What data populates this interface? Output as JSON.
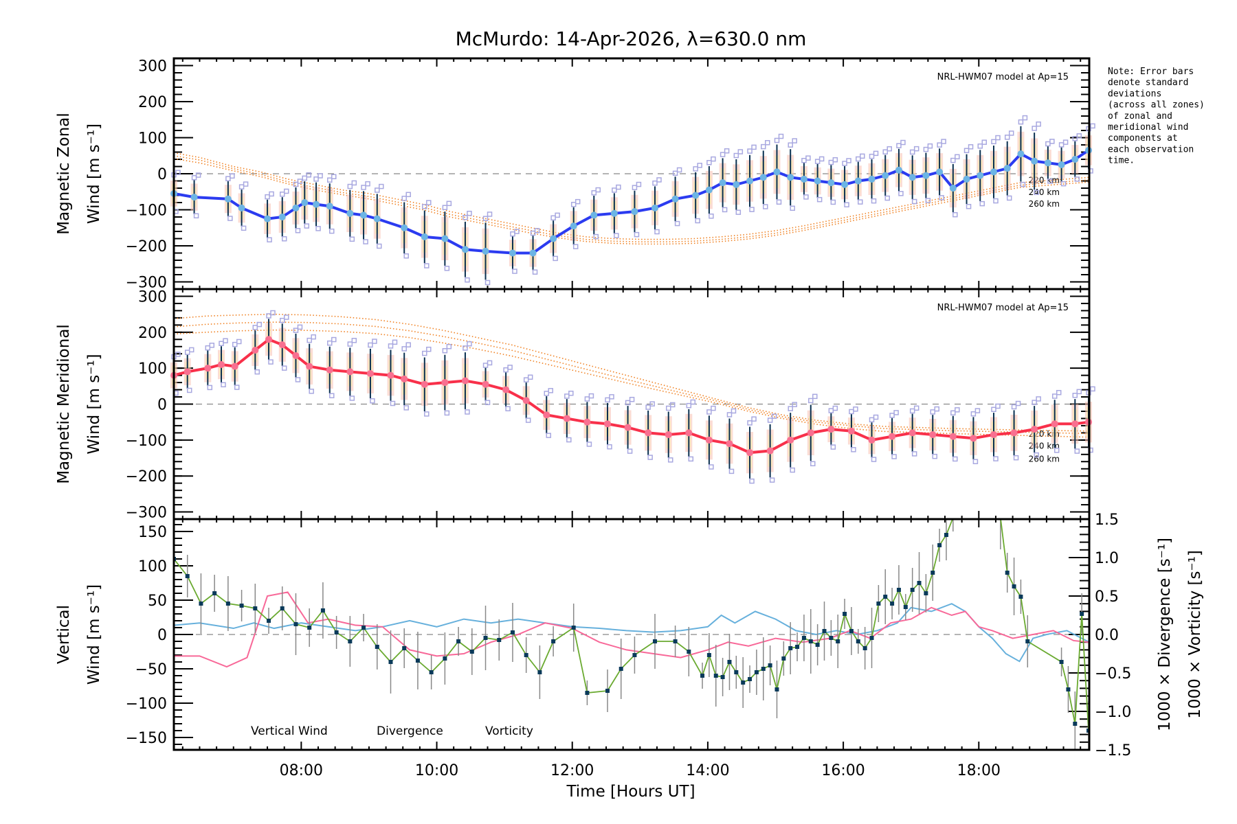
{
  "title": "McMurdo: 14-Apr-2026, λ=630.0 nm",
  "note_lines": [
    "Note: Error bars",
    "denote standard",
    "deviations",
    "(across all zones)",
    "of zonal and",
    "meridional wind",
    "components at",
    "each observation",
    "time."
  ],
  "colors": {
    "zonal": "#2b3bf0",
    "zonal_marker": "#6cb4e4",
    "meridional": "#f8304a",
    "meridional_marker": "#f87090",
    "model": "#f08020",
    "vertical": "#6aaa30",
    "vertical_marker": "#0a3a5a",
    "divergence": "#66b0dc",
    "vorticity": "#f86898",
    "errorbar": "#0a3050",
    "zone_scatter": "#a8a8e0",
    "zero_line": "#888888"
  },
  "chart_data": [
    {
      "type": "line",
      "panel": "zonal",
      "ylabel_lines": [
        "Magnetic Zonal",
        "Wind [m s⁻¹]"
      ],
      "ylim": [
        -320,
        320
      ],
      "yticks": [
        300,
        200,
        100,
        0,
        -100,
        -200,
        -300
      ],
      "model_label": "NRL-HWM07 model at Ap=15",
      "model_altitude_labels": [
        "220 km",
        "240 km",
        "260 km"
      ],
      "x": [
        6.12,
        6.42,
        6.92,
        7.12,
        7.5,
        7.72,
        7.92,
        8.05,
        8.22,
        8.42,
        8.72,
        8.92,
        9.12,
        9.52,
        9.82,
        10.12,
        10.42,
        10.72,
        11.12,
        11.42,
        11.72,
        12.02,
        12.32,
        12.62,
        12.92,
        13.22,
        13.52,
        13.82,
        14.02,
        14.22,
        14.42,
        14.62,
        14.82,
        15.02,
        15.22,
        15.42,
        15.62,
        15.82,
        16.02,
        16.22,
        16.42,
        16.62,
        16.82,
        17.02,
        17.22,
        17.42,
        17.62,
        17.82,
        18.02,
        18.22,
        18.42,
        18.62,
        18.82,
        19.02,
        19.22,
        19.42,
        19.62
      ],
      "series": [
        {
          "name": "Zonal Wind",
          "values": [
            -55,
            -65,
            -70,
            -95,
            -125,
            -120,
            -95,
            -80,
            -85,
            -90,
            -110,
            -115,
            -125,
            -150,
            -175,
            -180,
            -210,
            -215,
            -220,
            -220,
            -180,
            -145,
            -115,
            -110,
            -105,
            -95,
            -70,
            -60,
            -45,
            -25,
            -30,
            -20,
            -10,
            5,
            -10,
            -15,
            -20,
            -25,
            -30,
            -20,
            -15,
            -5,
            10,
            -10,
            -5,
            5,
            -40,
            -15,
            -5,
            5,
            15,
            55,
            35,
            30,
            25,
            40,
            65
          ]
        },
        {
          "name": "Model 220 km",
          "values": [
            58,
            45,
            20,
            5,
            -15,
            -30,
            -45,
            -55,
            -70,
            -85,
            -105,
            -120,
            -135,
            -150,
            -165,
            -175,
            -180,
            -182,
            -182,
            -180,
            -175,
            -168,
            -158,
            -145,
            -130,
            -115,
            -100,
            -85,
            -70,
            -55,
            -40,
            -25,
            -10
          ]
        },
        {
          "name": "Model 240 km",
          "values": [
            50,
            38,
            14,
            -2,
            -22,
            -38,
            -52,
            -63,
            -78,
            -93,
            -113,
            -128,
            -143,
            -158,
            -172,
            -182,
            -187,
            -189,
            -189,
            -187,
            -182,
            -175,
            -165,
            -152,
            -137,
            -122,
            -107,
            -92,
            -77,
            -62,
            -47,
            -32,
            -17
          ]
        },
        {
          "name": "Model 260 km",
          "values": [
            42,
            30,
            8,
            -8,
            -28,
            -45,
            -58,
            -70,
            -85,
            -100,
            -120,
            -135,
            -150,
            -165,
            -178,
            -188,
            -193,
            -195,
            -195,
            -193,
            -188,
            -181,
            -171,
            -158,
            -143,
            -128,
            -113,
            -98,
            -83,
            -68,
            -53,
            -38,
            -23
          ]
        }
      ],
      "model_x": [
        6.12,
        6.5,
        7,
        7.4,
        7.8,
        8.2,
        8.6,
        9,
        9.4,
        9.8,
        10.2,
        10.6,
        11,
        11.4,
        11.8,
        12.2,
        12.6,
        13,
        13.4,
        13.8,
        14.2,
        14.6,
        15,
        15.4,
        15.8,
        16.2,
        16.6,
        17,
        17.4,
        17.8,
        18.2,
        18.6,
        19.63
      ]
    },
    {
      "type": "line",
      "panel": "meridional",
      "ylabel_lines": [
        "Magnetic Meridional",
        "Wind [m s⁻¹]"
      ],
      "ylim": [
        -320,
        320
      ],
      "yticks": [
        300,
        200,
        100,
        0,
        -100,
        -200,
        -300
      ],
      "model_label": "NRL-HWM07 model at Ap=15",
      "model_altitude_labels": [
        "220 km",
        "240 km",
        "260 km"
      ],
      "x": [
        6.12,
        6.32,
        6.62,
        6.82,
        7.02,
        7.32,
        7.52,
        7.72,
        7.92,
        8.12,
        8.42,
        8.72,
        9.02,
        9.32,
        9.52,
        9.82,
        10.12,
        10.42,
        10.72,
        11.02,
        11.32,
        11.62,
        11.92,
        12.22,
        12.52,
        12.82,
        13.12,
        13.42,
        13.72,
        14.02,
        14.32,
        14.62,
        14.92,
        15.22,
        15.52,
        15.82,
        16.12,
        16.42,
        16.72,
        17.02,
        17.32,
        17.62,
        17.92,
        18.22,
        18.52,
        18.82,
        19.12,
        19.42,
        19.62
      ],
      "series": [
        {
          "name": "Meridional Wind",
          "values": [
            80,
            90,
            100,
            110,
            105,
            150,
            180,
            165,
            135,
            105,
            95,
            90,
            85,
            80,
            70,
            55,
            60,
            65,
            55,
            40,
            10,
            -30,
            -40,
            -50,
            -55,
            -65,
            -80,
            -85,
            -80,
            -100,
            -110,
            -135,
            -130,
            -100,
            -80,
            -70,
            -75,
            -100,
            -90,
            -80,
            -85,
            -90,
            -95,
            -85,
            -80,
            -70,
            -55,
            -55,
            -50
          ]
        },
        {
          "name": "Model 220 km",
          "values": [
            238,
            245,
            248,
            250,
            248,
            243,
            235,
            222,
            205,
            185,
            165,
            140,
            115,
            90,
            65,
            40,
            15,
            -10,
            -30,
            -45,
            -55,
            -62,
            -68,
            -72,
            -75
          ]
        },
        {
          "name": "Model 240 km",
          "values": [
            215,
            222,
            226,
            228,
            227,
            223,
            216,
            204,
            188,
            170,
            150,
            126,
            102,
            78,
            55,
            32,
            10,
            -15,
            -35,
            -50,
            -60,
            -68,
            -74,
            -78,
            -82
          ]
        },
        {
          "name": "Model 260 km",
          "values": [
            195,
            200,
            204,
            206,
            205,
            202,
            196,
            185,
            170,
            153,
            134,
            112,
            90,
            68,
            46,
            25,
            4,
            -20,
            -40,
            -56,
            -68,
            -76,
            -82,
            -87,
            -92
          ]
        }
      ],
      "model_x": [
        6.12,
        6.6,
        7.1,
        7.6,
        8.1,
        8.6,
        9.1,
        9.6,
        10.1,
        10.6,
        11.1,
        11.6,
        12.1,
        12.6,
        13.1,
        13.6,
        14.1,
        14.6,
        15.1,
        15.6,
        16.1,
        16.6,
        17.6,
        18.6,
        19.63
      ]
    },
    {
      "type": "line",
      "panel": "vertical",
      "ylabel_lines": [
        "Vertical",
        "Wind [m s⁻¹]"
      ],
      "ylim": [
        -168,
        168
      ],
      "yticks": [
        150,
        100,
        50,
        0,
        -50,
        -100,
        -150
      ],
      "y2label_lines": [
        "1000 × Divergence [s⁻¹]",
        "1000 × Vorticity [s⁻¹]"
      ],
      "y2lim": [
        -1.5,
        1.5
      ],
      "y2ticks": [
        "1.5",
        "1.0",
        "0.5",
        "0.0",
        "−0.5",
        "−1.0",
        "−1.5"
      ],
      "y2tick_values": [
        1.5,
        1.0,
        0.5,
        0.0,
        -0.5,
        -1.0,
        -1.5
      ],
      "xlabel": "Time [Hours UT]",
      "xlim": [
        6.12,
        19.63
      ],
      "xticks": [
        "08:00",
        "10:00",
        "12:00",
        "14:00",
        "16:00",
        "18:00"
      ],
      "xtick_values": [
        8,
        10,
        12,
        14,
        16,
        18
      ],
      "legend": [
        "Vertical Wind",
        "Divergence",
        "Vorticity"
      ],
      "legend_position": "bottom-left",
      "vertical_x": [
        6.12,
        6.32,
        6.52,
        6.72,
        6.92,
        7.12,
        7.32,
        7.52,
        7.72,
        7.92,
        8.12,
        8.32,
        8.52,
        8.72,
        8.92,
        9.12,
        9.32,
        9.52,
        9.72,
        9.92,
        10.12,
        10.32,
        10.52,
        10.72,
        10.92,
        11.12,
        11.32,
        11.52,
        11.72,
        12.02,
        12.22,
        12.52,
        12.72,
        12.92,
        13.22,
        13.52,
        13.72,
        13.92,
        14.02,
        14.12,
        14.22,
        14.32,
        14.42,
        14.52,
        14.62,
        14.72,
        14.82,
        14.92,
        15.02,
        15.12,
        15.22,
        15.32,
        15.42,
        15.52,
        15.62,
        15.72,
        15.82,
        15.92,
        16.02,
        16.12,
        16.22,
        16.32,
        16.42,
        16.52,
        16.62,
        16.72,
        16.82,
        16.92,
        17.02,
        17.12,
        17.22,
        17.32,
        17.42,
        17.52,
        17.62,
        18.22,
        18.32,
        18.42,
        18.52,
        18.62,
        18.72,
        19.22,
        19.32,
        19.42,
        19.52,
        19.62
      ],
      "vertical_values": [
        110,
        85,
        45,
        60,
        45,
        42,
        38,
        20,
        38,
        15,
        10,
        35,
        3,
        -10,
        10,
        -18,
        -40,
        -20,
        -38,
        -55,
        -35,
        -10,
        -25,
        -5,
        -8,
        3,
        -30,
        -55,
        -10,
        10,
        -85,
        -82,
        -50,
        -30,
        -10,
        -10,
        -25,
        -60,
        -30,
        -60,
        -62,
        -40,
        -55,
        -70,
        -65,
        -55,
        -50,
        -45,
        -80,
        -35,
        -20,
        -18,
        -5,
        -10,
        -15,
        5,
        -5,
        -10,
        30,
        5,
        -10,
        -20,
        -5,
        45,
        55,
        45,
        65,
        40,
        65,
        75,
        60,
        90,
        130,
        145,
        170,
        200,
        170,
        90,
        70,
        55,
        -10,
        -40,
        -80,
        -130,
        30,
        -140
      ],
      "divergence_x": [
        6.12,
        6.5,
        7.0,
        7.3,
        7.6,
        8.0,
        8.4,
        8.8,
        9.2,
        9.6,
        10.0,
        10.4,
        10.8,
        11.2,
        11.6,
        12.0,
        12.4,
        12.8,
        13.2,
        13.6,
        14.0,
        14.2,
        14.4,
        14.7,
        15.0,
        15.3,
        15.6,
        15.9,
        16.2,
        16.5,
        16.8,
        17.0,
        17.3,
        17.6,
        17.8,
        18.0,
        18.2,
        18.4,
        18.6,
        18.8,
        19.0,
        19.3,
        19.63
      ],
      "divergence_values": [
        0.12,
        0.15,
        0.08,
        0.15,
        0.08,
        0.15,
        0.1,
        0.05,
        0.1,
        0.18,
        0.1,
        0.2,
        0.15,
        0.2,
        0.15,
        0.1,
        0.08,
        0.05,
        0.03,
        0.05,
        0.1,
        0.25,
        0.15,
        0.3,
        0.2,
        0.05,
        0.0,
        0.05,
        0.0,
        0.05,
        0.15,
        0.35,
        0.3,
        0.4,
        0.3,
        0.1,
        -0.05,
        -0.25,
        -0.35,
        -0.05,
        0.0,
        0.05,
        -0.1
      ],
      "vorticity_x": [
        6.12,
        6.5,
        6.9,
        7.2,
        7.5,
        7.8,
        8.1,
        8.4,
        8.8,
        9.2,
        9.6,
        10.0,
        10.4,
        10.8,
        11.2,
        11.6,
        12.0,
        12.4,
        12.8,
        13.2,
        13.6,
        14.0,
        14.3,
        14.6,
        15.0,
        15.4,
        15.8,
        16.1,
        16.4,
        16.7,
        17.0,
        17.3,
        17.6,
        17.8,
        18.0,
        18.2,
        18.5,
        18.8,
        19.1,
        19.4,
        19.63
      ],
      "vorticity_values": [
        -0.28,
        -0.28,
        -0.42,
        -0.3,
        0.5,
        0.55,
        0.15,
        0.2,
        0.12,
        0.1,
        -0.2,
        -0.28,
        -0.25,
        -0.1,
        0.0,
        0.15,
        0.08,
        -0.1,
        -0.2,
        -0.25,
        -0.3,
        -0.2,
        -0.1,
        -0.15,
        -0.05,
        -0.1,
        -0.05,
        0.05,
        -0.05,
        0.15,
        0.2,
        0.35,
        0.25,
        0.3,
        0.1,
        0.05,
        -0.05,
        0.0,
        0.05,
        -0.08,
        -0.1
      ]
    }
  ]
}
